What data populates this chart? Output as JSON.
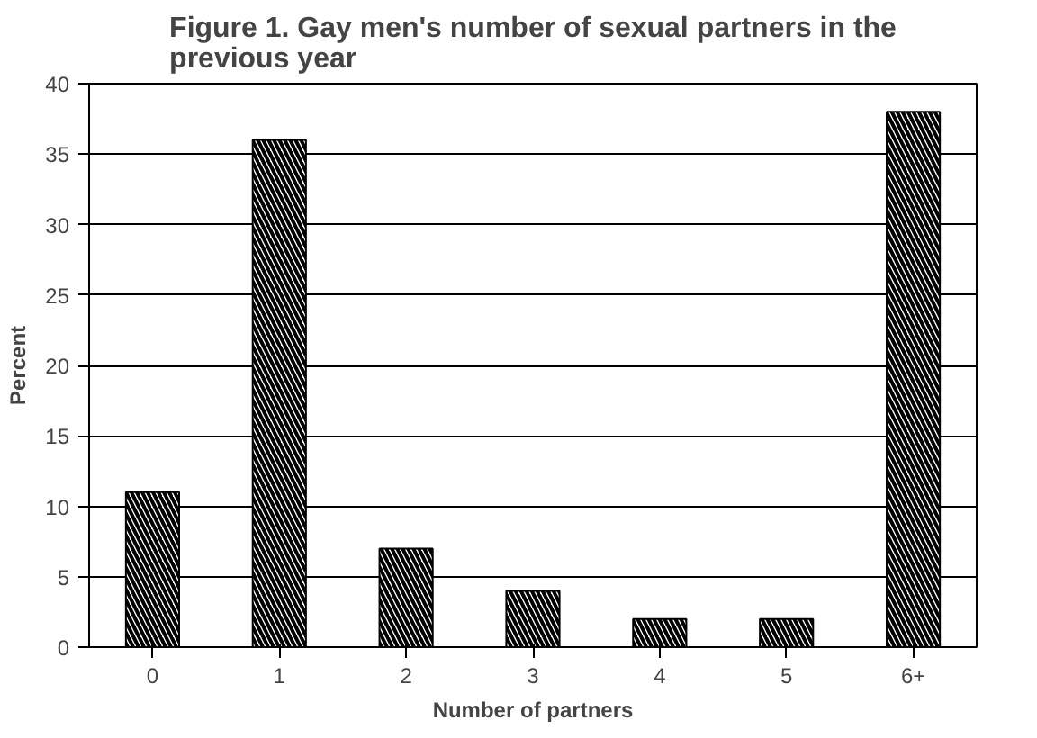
{
  "chart_data": {
    "type": "bar",
    "title": "Figure 1. Gay men's number of sexual partners in the previous year",
    "xlabel": "Number of partners",
    "ylabel": "Percent",
    "categories": [
      "0",
      "1",
      "2",
      "3",
      "4",
      "5",
      "6+"
    ],
    "values": [
      11,
      36,
      7,
      4,
      2,
      2,
      38
    ],
    "color": "#000000",
    "ylim": [
      0,
      40
    ],
    "yticks": [
      0,
      5,
      10,
      15,
      20,
      25,
      30,
      35,
      40
    ],
    "grid": "y"
  }
}
